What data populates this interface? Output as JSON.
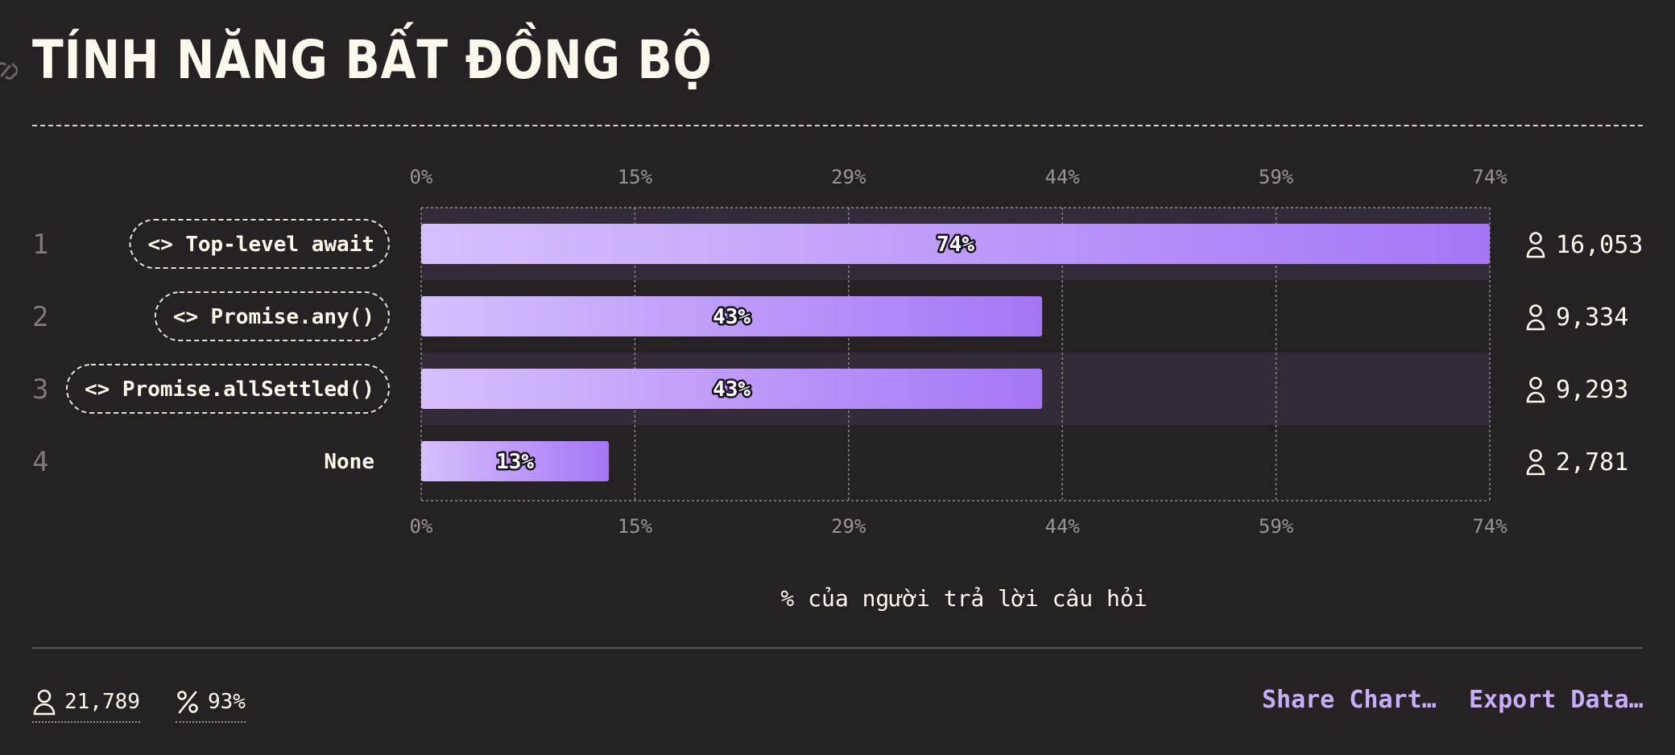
{
  "title": "TÍNH NĂNG BẤT ĐỒNG BỘ",
  "chart_data": {
    "type": "bar",
    "orientation": "horizontal",
    "categories": [
      "Top-level await",
      "Promise.any()",
      "Promise.allSettled()",
      "None"
    ],
    "ranks": [
      "1",
      "2",
      "3",
      "4"
    ],
    "values": [
      74,
      43,
      43,
      13
    ],
    "value_labels": [
      "74%",
      "43%",
      "43%",
      "13%"
    ],
    "counts": [
      "16,053",
      "9,334",
      "9,293",
      "2,781"
    ],
    "code_feature": [
      true,
      true,
      true,
      false
    ],
    "xticks": [
      "0%",
      "15%",
      "29%",
      "44%",
      "59%",
      "74%"
    ],
    "xlim": [
      0,
      74
    ],
    "xlabel": "% của người trả lời câu hỏi",
    "grid": true,
    "colors": {
      "bar_start": "#d6c0fc",
      "bar_end": "#a476f6",
      "band": "#332c38"
    }
  },
  "footer": {
    "respondents": "21,789",
    "percent": "93%",
    "share_label": "Share Chart…",
    "export_label": "Export Data…"
  }
}
